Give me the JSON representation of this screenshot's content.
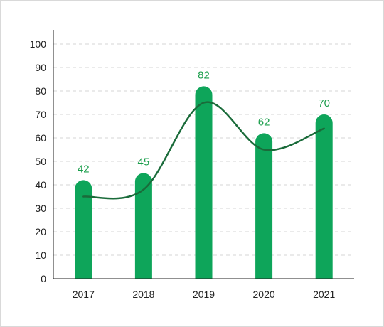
{
  "chart_data": {
    "type": "bar",
    "categories": [
      "2017",
      "2018",
      "2019",
      "2020",
      "2021"
    ],
    "values": [
      42,
      45,
      82,
      62,
      70
    ],
    "ylim": [
      0,
      100
    ],
    "yticks": [
      0,
      10,
      20,
      30,
      40,
      50,
      60,
      70,
      80,
      90,
      100
    ],
    "grid": true,
    "title": "",
    "xlabel": "",
    "ylabel": "",
    "trend_line": {
      "type": "smooth-curve",
      "points": [
        {
          "x": "2017",
          "y": 35
        },
        {
          "x": "2018",
          "y": 38
        },
        {
          "x": "2019",
          "y": 75
        },
        {
          "x": "2020",
          "y": 55
        },
        {
          "x": "2021",
          "y": 64
        }
      ]
    },
    "colors": {
      "bar": "#0ea55a",
      "value_label": "#1a9e4b",
      "trend_line": "#1a6b3a",
      "grid": "#d6d6d6",
      "axis": "#222222"
    }
  }
}
